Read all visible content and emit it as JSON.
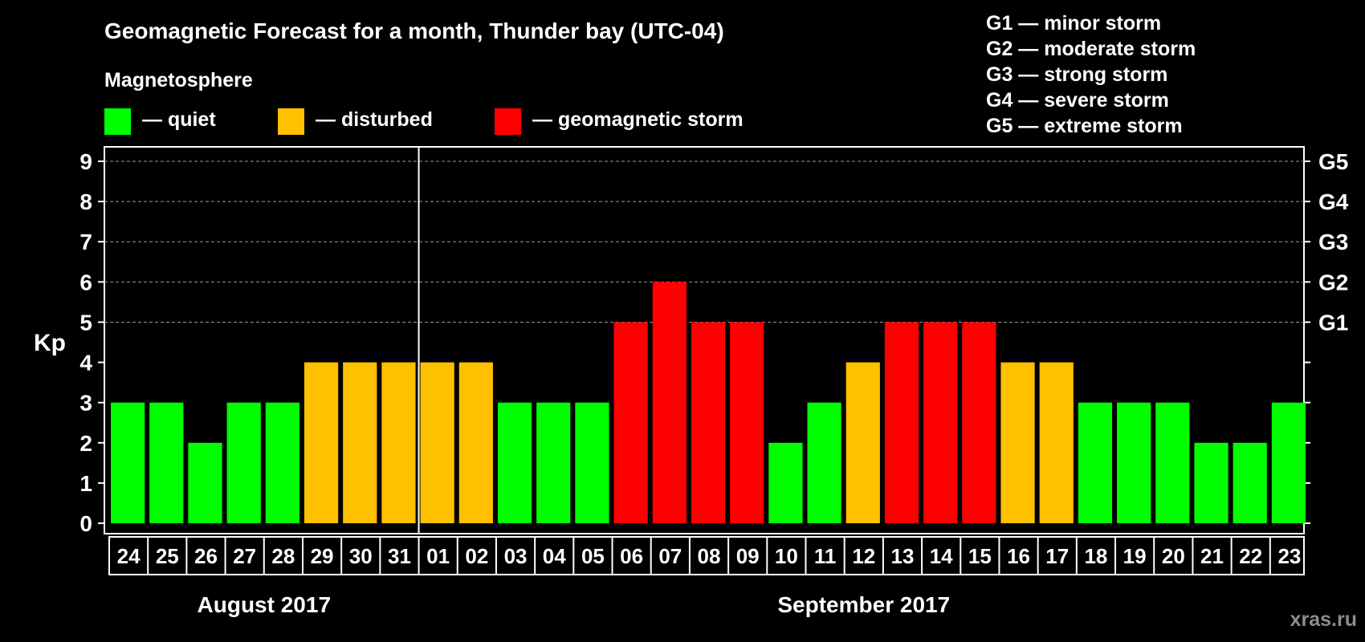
{
  "title": "Geomagnetic Forecast for a month, Thunder bay (UTC-04)",
  "legend": {
    "heading": "Magnetosphere",
    "items": [
      {
        "key": "quiet",
        "label": "— quiet",
        "color": "#00ff00"
      },
      {
        "key": "disturbed",
        "label": "— disturbed",
        "color": "#ffc000"
      },
      {
        "key": "storm",
        "label": "— geomagnetic storm",
        "color": "#ff0000"
      }
    ]
  },
  "storm_scale": [
    "G1 — minor storm",
    "G2 — moderate storm",
    "G3 — strong storm",
    "G4 — severe storm",
    "G5 — extreme storm"
  ],
  "watermark": "xras.ru",
  "colors": {
    "background": "#000000",
    "axis": "#ffffff",
    "grid": "#9a9a9a",
    "quiet": "#00ff00",
    "disturbed": "#ffc000",
    "storm": "#ff0000"
  },
  "chart_data": {
    "type": "bar",
    "ylabel": "Kp",
    "ylim": [
      0,
      9
    ],
    "yticks": [
      0,
      1,
      2,
      3,
      4,
      5,
      6,
      7,
      8,
      9
    ],
    "right_axis_labels": [
      {
        "kp": 5,
        "label": "G1"
      },
      {
        "kp": 6,
        "label": "G2"
      },
      {
        "kp": 7,
        "label": "G3"
      },
      {
        "kp": 8,
        "label": "G4"
      },
      {
        "kp": 9,
        "label": "G5"
      }
    ],
    "grid": "horizontal dashed at Kp 5-9",
    "categories": [
      "24",
      "25",
      "26",
      "27",
      "28",
      "29",
      "30",
      "31",
      "01",
      "02",
      "03",
      "04",
      "05",
      "06",
      "07",
      "08",
      "09",
      "10",
      "11",
      "12",
      "13",
      "14",
      "15",
      "16",
      "17",
      "18",
      "19",
      "20",
      "21",
      "22",
      "23"
    ],
    "values": [
      3,
      3,
      2,
      3,
      3,
      4,
      4,
      4,
      4,
      4,
      3,
      3,
      3,
      5,
      6,
      5,
      5,
      2,
      3,
      4,
      5,
      5,
      5,
      4,
      4,
      3,
      3,
      3,
      2,
      2,
      3
    ],
    "months": [
      {
        "label": "August 2017",
        "first": 0,
        "last": 7
      },
      {
        "label": "September 2017",
        "first": 8,
        "last": 30
      }
    ]
  }
}
